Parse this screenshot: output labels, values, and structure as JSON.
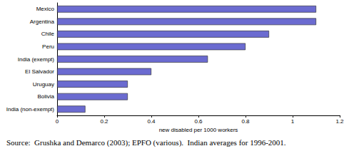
{
  "chart_data": {
    "type": "bar",
    "orientation": "horizontal",
    "categories": [
      "Mexico",
      "Argentina",
      "Chile",
      "Peru",
      "India (exempt)",
      "El Salvador",
      "Uruguay",
      "Bolivia",
      "India (non-exempt)"
    ],
    "values": [
      1.1,
      1.1,
      0.9,
      0.8,
      0.64,
      0.4,
      0.3,
      0.3,
      0.12
    ],
    "color": "#6b6bd0",
    "x_label": "new disabled per 1000 workers",
    "xlim": [
      0,
      1.2
    ],
    "xticks": [
      0,
      0.2,
      0.4,
      0.6,
      0.8,
      1,
      1.2
    ],
    "grid": false,
    "source": "Source:  Grushka and Demarco (2003); EPFO (various).  Indian averages for 1996-2001."
  }
}
